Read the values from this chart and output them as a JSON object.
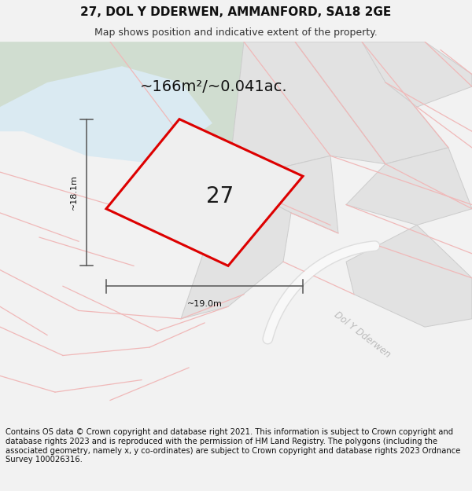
{
  "title": "27, DOL Y DDERWEN, AMMANFORD, SA18 2GE",
  "subtitle": "Map shows position and indicative extent of the property.",
  "area_text": "~166m²/~0.041ac.",
  "dim_height": "~18.1m",
  "dim_width": "~19.0m",
  "plot_number": "27",
  "street_name": "Dol Y Dderwen",
  "footer": "Contains OS data © Crown copyright and database right 2021. This information is subject to Crown copyright and database rights 2023 and is reproduced with the permission of HM Land Registry. The polygons (including the associated geometry, namely x, y co-ordinates) are subject to Crown copyright and database rights 2023 Ordnance Survey 100026316.",
  "bg_color": "#f2f2f2",
  "map_bg": "#ffffff",
  "green_color": "#d0ddd0",
  "water_color": "#daeaf2",
  "plot_fill": "#efefef",
  "plot_outline": "#dd0000",
  "dim_line_color": "#555555",
  "road_line_color": "#f0b8b8",
  "gray_plot_color": "#e2e2e2",
  "gray_plot_edge": "#cccccc",
  "street_label_color": "#bbbbbb",
  "title_fontsize": 11,
  "subtitle_fontsize": 9,
  "area_fontsize": 14,
  "footer_fontsize": 7.2
}
